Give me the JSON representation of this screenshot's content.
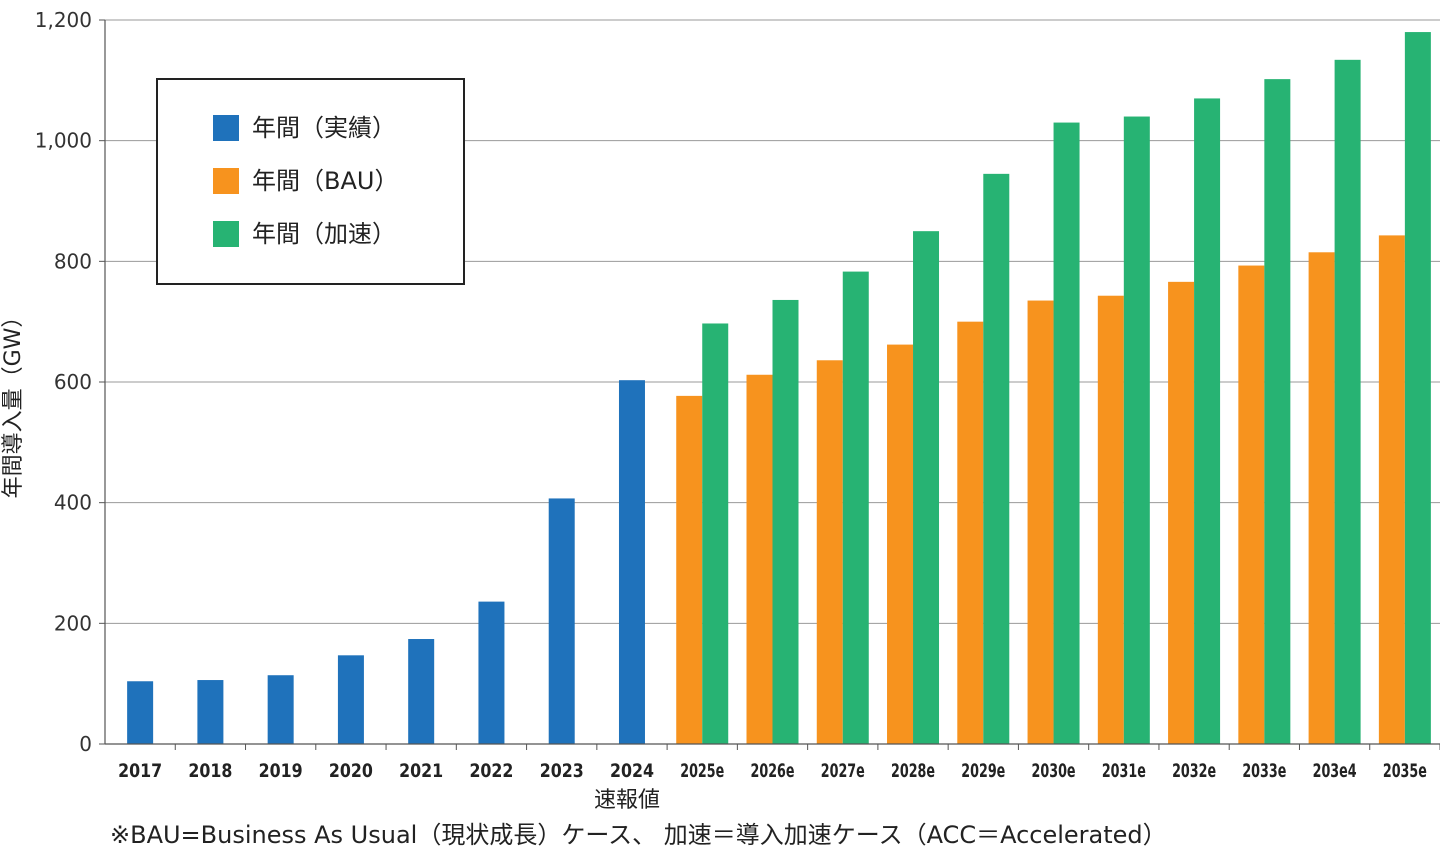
{
  "chart_data": {
    "type": "bar",
    "categories": [
      "2017",
      "2018",
      "2019",
      "2020",
      "2021",
      "2022",
      "2023",
      "2024",
      "2025e",
      "2026e",
      "2027e",
      "2028e",
      "2029e",
      "2030e",
      "2031e",
      "2032e",
      "2033e",
      "203e4",
      "2035e"
    ],
    "series": [
      {
        "name": "年間（実績）",
        "color": "#1f72bb",
        "values": [
          104,
          106,
          114,
          147,
          174,
          236,
          407,
          603,
          null,
          null,
          null,
          null,
          null,
          null,
          null,
          null,
          null,
          null,
          null
        ]
      },
      {
        "name": "年間（BAU）",
        "color": "#f7931e",
        "values": [
          null,
          null,
          null,
          null,
          null,
          null,
          null,
          null,
          577,
          612,
          636,
          662,
          700,
          735,
          743,
          766,
          793,
          815,
          843
        ]
      },
      {
        "name": "年間（加速）",
        "color": "#27b373",
        "values": [
          null,
          null,
          null,
          null,
          null,
          null,
          null,
          null,
          697,
          736,
          783,
          850,
          945,
          1030,
          1040,
          1070,
          1102,
          1134,
          1180
        ]
      }
    ],
    "ylabel": "年間導入量（GW）",
    "ylim": [
      0,
      1200
    ],
    "yticks": [
      "0",
      "200",
      "400",
      "600",
      "800",
      "1,000",
      "1,200"
    ],
    "grid": true,
    "legend_position": "top-left",
    "annotation": "速報値",
    "footnote": "※BAU=Business As Usual（現状成長）ケース、 加速＝導入加速ケース（ACC＝Accelerated）"
  }
}
